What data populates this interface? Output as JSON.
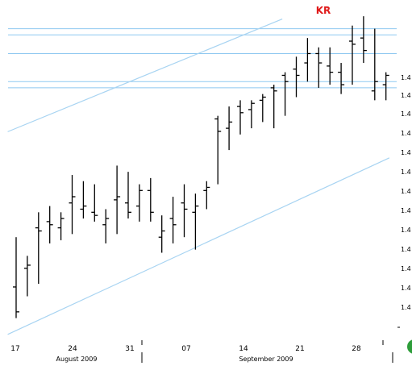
{
  "chart_data": {
    "type": "ohlc",
    "annotation": "KR",
    "annotation_color": "#e01b1b",
    "x_tick_labels": [
      "17",
      "24",
      "31",
      "07",
      "14",
      "21",
      "28"
    ],
    "month_labels": [
      "August 2009",
      "September 2009"
    ],
    "y_tick_label": "1.4",
    "ylim": [
      0,
      100
    ],
    "bars": [
      {
        "day": "Aug 17",
        "open": 14,
        "high": 30,
        "low": 4,
        "close": 6
      },
      {
        "day": "Aug 18",
        "open": 20,
        "high": 24,
        "low": 11,
        "close": 21
      },
      {
        "day": "Aug 19",
        "open": 33,
        "high": 38,
        "low": 15,
        "close": 32
      },
      {
        "day": "Aug 20",
        "open": 35,
        "high": 40,
        "low": 28,
        "close": 34
      },
      {
        "day": "Aug 21",
        "open": 33,
        "high": 38,
        "low": 29,
        "close": 36
      },
      {
        "day": "Aug 24",
        "open": 41,
        "high": 50,
        "low": 31,
        "close": 43
      },
      {
        "day": "Aug 25",
        "open": 39,
        "high": 48,
        "low": 36,
        "close": 40
      },
      {
        "day": "Aug 26",
        "open": 38,
        "high": 47,
        "low": 35,
        "close": 37
      },
      {
        "day": "Aug 27",
        "open": 34,
        "high": 39,
        "low": 28,
        "close": 36
      },
      {
        "day": "Aug 28",
        "open": 42,
        "high": 53,
        "low": 31,
        "close": 43
      },
      {
        "day": "Aug 31",
        "open": 41,
        "high": 51,
        "low": 36,
        "close": 38
      },
      {
        "day": "Sep 01",
        "open": 40,
        "high": 47,
        "low": 35,
        "close": 45
      },
      {
        "day": "Sep 02",
        "open": 45,
        "high": 49,
        "low": 35,
        "close": 38
      },
      {
        "day": "Sep 03",
        "open": 30,
        "high": 37,
        "low": 25,
        "close": 32
      },
      {
        "day": "Sep 04",
        "open": 36,
        "high": 43,
        "low": 28,
        "close": 34
      },
      {
        "day": "Sep 07",
        "open": 41,
        "high": 47,
        "low": 30,
        "close": 39
      },
      {
        "day": "Sep 08",
        "open": 38,
        "high": 44,
        "low": 26,
        "close": 40
      },
      {
        "day": "Sep 09",
        "open": 45,
        "high": 48,
        "low": 39,
        "close": 46
      },
      {
        "day": "Sep 10",
        "open": 68,
        "high": 69,
        "low": 47,
        "close": 64
      },
      {
        "day": "Sep 11",
        "open": 65,
        "high": 72,
        "low": 58,
        "close": 67
      },
      {
        "day": "Sep 14",
        "open": 72,
        "high": 74,
        "low": 63,
        "close": 70
      },
      {
        "day": "Sep 15",
        "open": 71,
        "high": 74,
        "low": 65,
        "close": 73
      },
      {
        "day": "Sep 16",
        "open": 74,
        "high": 76,
        "low": 67,
        "close": 75
      },
      {
        "day": "Sep 17",
        "open": 78,
        "high": 79,
        "low": 65,
        "close": 77
      },
      {
        "day": "Sep 18",
        "open": 82,
        "high": 83,
        "low": 69,
        "close": 80
      },
      {
        "day": "Sep 21",
        "open": 84,
        "high": 88,
        "low": 75,
        "close": 82
      },
      {
        "day": "Sep 22",
        "open": 86,
        "high": 94,
        "low": 80,
        "close": 89
      },
      {
        "day": "Sep 23",
        "open": 89,
        "high": 91,
        "low": 78,
        "close": 86
      },
      {
        "day": "Sep 24",
        "open": 85,
        "high": 91,
        "low": 79,
        "close": 83
      },
      {
        "day": "Sep 25",
        "open": 83,
        "high": 86,
        "low": 76,
        "close": 79
      },
      {
        "day": "Sep 28",
        "open": 93,
        "high": 98,
        "low": 79,
        "close": 92
      },
      {
        "day": "Sep 29",
        "open": 94,
        "high": 101,
        "low": 86,
        "close": 90
      },
      {
        "day": "Sep 30",
        "open": 77,
        "high": 97,
        "low": 74,
        "close": 80
      },
      {
        "day": "Oct 01",
        "open": 79,
        "high": 83,
        "low": 74,
        "close": 82
      }
    ],
    "horizontal_levels": [
      97,
      95,
      89,
      80,
      78
    ],
    "channel_lines": [
      {
        "name": "upper",
        "from": {
          "day_index": 0,
          "price": 65
        },
        "to": {
          "day_index": 23,
          "price": 99
        }
      },
      {
        "name": "lower",
        "from": {
          "day_index": 0,
          "price": 0
        },
        "to": {
          "day_index": 33,
          "price": 55
        }
      }
    ]
  }
}
